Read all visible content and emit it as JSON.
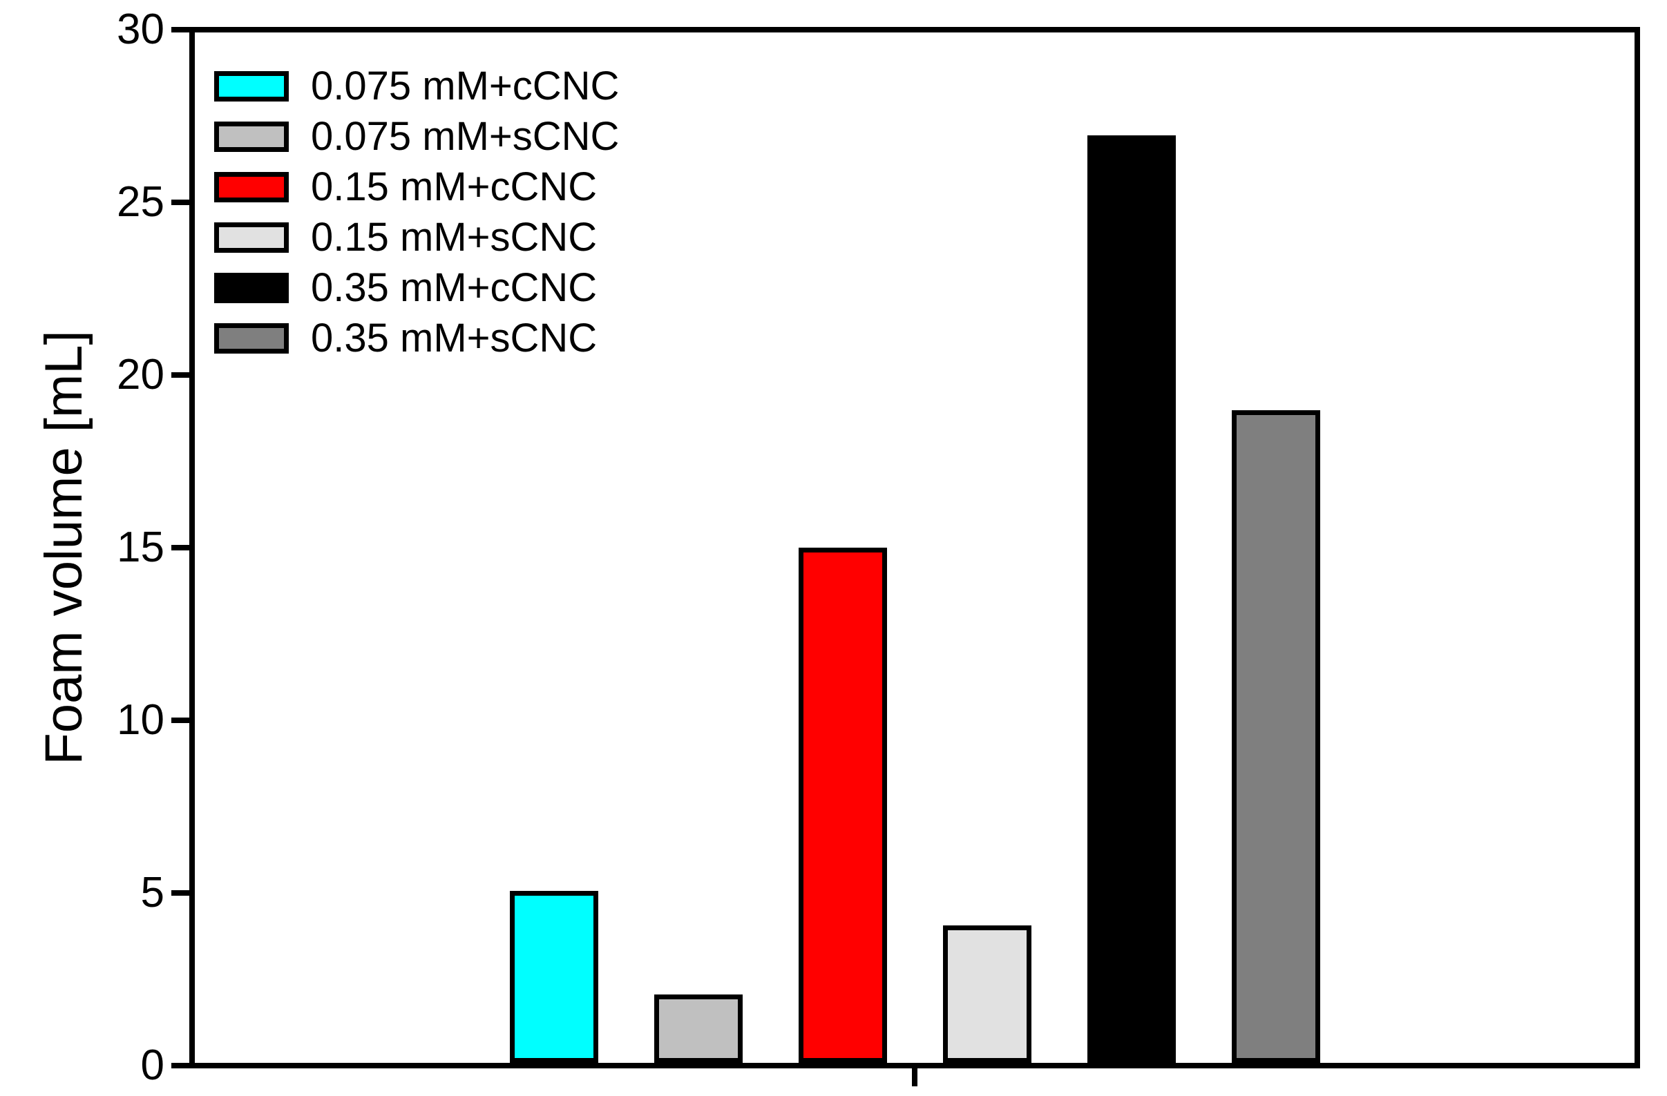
{
  "figure": {
    "background_color": "#FFFFFF",
    "frame_color": "#000000"
  },
  "chart_data": {
    "type": "bar",
    "title": "",
    "xlabel": "",
    "ylabel": "Foam volume [mL]",
    "ylim": [
      0,
      30
    ],
    "yticks": [
      "0",
      "5",
      "10",
      "15",
      "20",
      "25",
      "30"
    ],
    "grid": false,
    "legend_position": "upper-left-inside",
    "bar_outline_color": "#000000",
    "x_axis_single_center_tick": true,
    "series": [
      {
        "name": "0.075 mM+cCNC",
        "color": "#00FFFF",
        "value": 5
      },
      {
        "name": "0.075 mM+sCNC",
        "color": "#C0C0C0",
        "value": 2
      },
      {
        "name": "0.15 mM+cCNC",
        "color": "#FF0000",
        "value": 15
      },
      {
        "name": "0.15 mM+sCNC",
        "color": "#E1E1E1",
        "value": 4
      },
      {
        "name": "0.35 mM+cCNC",
        "color": "#000000",
        "value": 27
      },
      {
        "name": "0.35 mM+sCNC",
        "color": "#7F7F7F",
        "value": 19
      }
    ]
  }
}
